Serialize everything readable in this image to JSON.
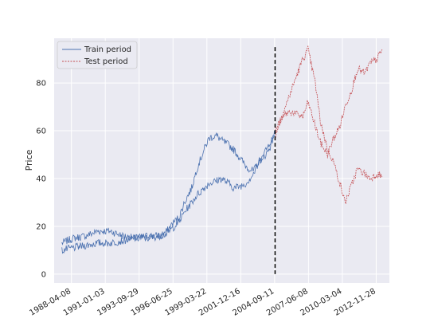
{
  "chart_data": {
    "type": "line",
    "title": "",
    "xlabel": "",
    "ylabel": "Price",
    "grid": true,
    "legend_position": "top-left",
    "x_tick_labels": [
      "1988-04-08",
      "1991-01-03",
      "1993-09-29",
      "1996-06-25",
      "1999-03-22",
      "2001-12-16",
      "2004-09-11",
      "2007-06-08",
      "2010-03-04",
      "2012-11-28"
    ],
    "y_ticks": [
      0,
      20,
      40,
      60,
      80
    ],
    "ylim": [
      -3.7,
      98.7
    ],
    "split_date": "2004-10-01",
    "colors": {
      "train": "#4c72b0",
      "test": "#c44e52",
      "split": "#000000",
      "background": "#eaeaf2",
      "grid": "#ffffff"
    },
    "series": [
      {
        "name": "Train period",
        "style": "solid",
        "segments": [
          {
            "x": [
              "1987-07-01",
              "1988-06-01",
              "1989-06-01",
              "1990-06-01",
              "1991-06-01",
              "1992-06-01",
              "1993-06-01",
              "1994-06-01",
              "1995-06-01",
              "1996-01-01",
              "1996-06-01",
              "1997-01-01",
              "1997-06-01",
              "1998-01-01",
              "1998-06-01",
              "1999-01-01",
              "1999-06-01",
              "2000-01-01",
              "2000-06-01",
              "2001-01-01",
              "2001-06-01",
              "2002-01-01",
              "2002-06-01",
              "2003-01-01",
              "2003-06-01",
              "2004-01-01",
              "2004-06-01",
              "2004-10-01"
            ],
            "y": [
              13,
              15,
              16,
              18,
              18,
              16,
              15,
              16,
              16,
              18,
              21,
              24,
              30,
              36,
              44,
              52,
              57,
              58,
              56,
              54,
              52,
              48,
              45,
              43,
              47,
              50,
              54,
              60
            ]
          },
          {
            "x": [
              "1987-07-01",
              "1988-06-01",
              "1989-06-01",
              "1990-06-01",
              "1991-06-01",
              "1992-06-01",
              "1993-06-01",
              "1994-06-01",
              "1995-06-01",
              "1996-01-01",
              "1996-06-01",
              "1997-01-01",
              "1997-06-01",
              "1998-01-01",
              "1998-06-01",
              "1999-01-01",
              "1999-06-01",
              "2000-01-01",
              "2000-06-01",
              "2001-01-01",
              "2001-06-01",
              "2002-01-01",
              "2002-06-01",
              "2003-01-01",
              "2003-06-01",
              "2004-01-01",
              "2004-06-01",
              "2004-10-01"
            ],
            "y": [
              10,
              11,
              12,
              13,
              13,
              14,
              15,
              15,
              16,
              17,
              19,
              22,
              26,
              30,
              33,
              36,
              38,
              39,
              40,
              38,
              36,
              37,
              38,
              42,
              46,
              52,
              56,
              58
            ]
          }
        ]
      },
      {
        "name": "Test period",
        "style": "dashed",
        "segments": [
          {
            "x": [
              "2004-10-01",
              "2005-03-01",
              "2005-08-01",
              "2006-01-01",
              "2006-06-01",
              "2007-01-01",
              "2007-06-01",
              "2008-01-01",
              "2008-06-01",
              "2009-01-01",
              "2009-06-01",
              "2010-01-01",
              "2010-06-01",
              "2011-01-01",
              "2011-06-01",
              "2012-01-01",
              "2012-06-01",
              "2013-01-01",
              "2013-06-01"
            ],
            "y": [
              58,
              64,
              70,
              76,
              82,
              90,
              94,
              80,
              64,
              52,
              48,
              38,
              30,
              38,
              44,
              42,
              40,
              42,
              41
            ]
          },
          {
            "x": [
              "2004-10-01",
              "2005-03-01",
              "2005-08-01",
              "2006-01-01",
              "2006-06-01",
              "2007-01-01",
              "2007-06-01",
              "2008-01-01",
              "2008-06-01",
              "2009-01-01",
              "2009-06-01",
              "2010-01-01",
              "2010-06-01",
              "2011-01-01",
              "2011-06-01",
              "2012-01-01",
              "2012-06-01",
              "2013-01-01",
              "2013-06-01"
            ],
            "y": [
              60,
              64,
              67,
              68,
              67,
              66,
              72,
              62,
              55,
              50,
              56,
              62,
              70,
              78,
              86,
              84,
              88,
              90,
              94
            ]
          }
        ]
      }
    ]
  }
}
